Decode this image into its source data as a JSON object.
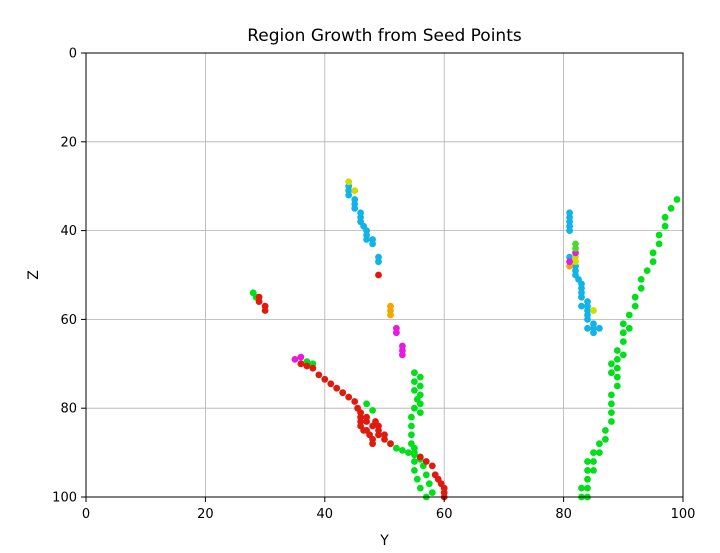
{
  "chart_data": {
    "type": "scatter",
    "title": "Region Growth from Seed Points",
    "xlabel": "Y",
    "ylabel": "Z",
    "xlim": [
      0,
      100
    ],
    "ylim": [
      100,
      0
    ],
    "y_axis_inverted": true,
    "grid": true,
    "x_ticks": [
      "0",
      "20",
      "40",
      "60",
      "80",
      "100"
    ],
    "y_ticks": [
      "0",
      "20",
      "40",
      "60",
      "80",
      "100"
    ],
    "series": [
      {
        "color": "#00e01a",
        "points": [
          [
            55,
            72
          ],
          [
            55,
            74
          ],
          [
            55,
            76
          ],
          [
            55.5,
            78
          ],
          [
            55,
            80
          ],
          [
            56,
            73
          ],
          [
            56,
            75
          ],
          [
            56,
            77
          ],
          [
            56,
            79
          ],
          [
            56,
            81
          ],
          [
            54.5,
            82
          ],
          [
            54.5,
            84
          ],
          [
            54.5,
            86
          ],
          [
            54.5,
            88
          ],
          [
            55,
            90
          ],
          [
            55,
            92
          ],
          [
            55,
            94
          ],
          [
            55.5,
            96
          ],
          [
            56,
            98
          ],
          [
            57,
            100
          ],
          [
            55,
            89
          ],
          [
            56,
            91
          ],
          [
            56.5,
            93
          ],
          [
            57,
            95
          ],
          [
            57.5,
            97
          ],
          [
            58,
            99
          ],
          [
            51,
            88
          ],
          [
            52,
            89
          ],
          [
            53,
            89.5
          ],
          [
            54,
            90
          ],
          [
            55,
            90.5
          ],
          [
            56,
            91.5
          ],
          [
            47,
            79
          ],
          [
            48,
            80.5
          ],
          [
            37,
            69.5
          ],
          [
            38,
            70
          ],
          [
            28,
            54
          ],
          [
            28.5,
            55
          ],
          [
            83,
            98
          ],
          [
            83,
            100
          ],
          [
            84,
            92
          ],
          [
            84,
            94
          ],
          [
            84,
            96
          ],
          [
            84,
            98
          ],
          [
            84,
            100
          ],
          [
            85,
            90
          ],
          [
            85,
            92
          ],
          [
            85,
            94
          ],
          [
            86,
            88
          ],
          [
            86,
            90
          ],
          [
            87,
            85
          ],
          [
            87,
            87
          ],
          [
            88,
            83
          ],
          [
            88,
            81
          ],
          [
            88,
            79
          ],
          [
            88,
            77
          ],
          [
            89,
            75
          ],
          [
            89,
            73
          ],
          [
            89,
            71
          ],
          [
            89,
            69
          ],
          [
            89,
            67
          ],
          [
            90,
            65
          ],
          [
            90,
            63
          ],
          [
            90,
            61
          ],
          [
            91,
            59
          ],
          [
            92,
            57
          ],
          [
            92,
            55
          ],
          [
            93,
            53
          ],
          [
            93,
            51
          ],
          [
            94,
            49
          ],
          [
            95,
            47
          ],
          [
            95,
            45
          ],
          [
            96,
            43
          ],
          [
            96,
            41
          ],
          [
            97,
            39
          ],
          [
            97,
            37
          ],
          [
            98,
            35
          ],
          [
            99,
            33
          ],
          [
            88,
            70
          ],
          [
            88,
            72
          ],
          [
            90,
            68
          ],
          [
            91,
            62
          ]
        ]
      },
      {
        "color": "#e01a0f",
        "points": [
          [
            36,
            70
          ],
          [
            37,
            70.5
          ],
          [
            38,
            71
          ],
          [
            39,
            72.5
          ],
          [
            40,
            73.5
          ],
          [
            41,
            74.5
          ],
          [
            42,
            75.5
          ],
          [
            43,
            76.5
          ],
          [
            44,
            77.5
          ],
          [
            45,
            78.5
          ],
          [
            45.5,
            80
          ],
          [
            46,
            81
          ],
          [
            46,
            82
          ],
          [
            46,
            83
          ],
          [
            46,
            84
          ],
          [
            46.5,
            85
          ],
          [
            47,
            85
          ],
          [
            47.5,
            86
          ],
          [
            48,
            87
          ],
          [
            48,
            88
          ],
          [
            48.5,
            83
          ],
          [
            49,
            84
          ],
          [
            49,
            85
          ],
          [
            50,
            86
          ],
          [
            50,
            87
          ],
          [
            51,
            88
          ],
          [
            47,
            82
          ],
          [
            47,
            83
          ],
          [
            48,
            84
          ],
          [
            49,
            86
          ],
          [
            56,
            91
          ],
          [
            57,
            92
          ],
          [
            58,
            93
          ],
          [
            58.5,
            95
          ],
          [
            59,
            96
          ],
          [
            59.5,
            97
          ],
          [
            60,
            98
          ],
          [
            60,
            99
          ],
          [
            60,
            100
          ],
          [
            29,
            55
          ],
          [
            29,
            56
          ],
          [
            30,
            57
          ],
          [
            30,
            58
          ],
          [
            49,
            50
          ]
        ]
      },
      {
        "color": "#12b4e8",
        "points": [
          [
            44,
            30
          ],
          [
            44,
            31
          ],
          [
            44,
            32
          ],
          [
            45,
            33
          ],
          [
            45,
            34
          ],
          [
            45,
            35
          ],
          [
            46,
            36
          ],
          [
            46,
            37
          ],
          [
            46,
            38
          ],
          [
            46.5,
            39
          ],
          [
            47,
            40
          ],
          [
            47,
            41
          ],
          [
            47,
            42
          ],
          [
            48,
            43
          ],
          [
            48,
            42
          ],
          [
            49,
            46
          ],
          [
            49,
            47
          ],
          [
            81,
            36
          ],
          [
            81,
            37
          ],
          [
            81,
            38
          ],
          [
            81,
            39
          ],
          [
            81,
            40
          ],
          [
            81,
            46
          ],
          [
            82,
            48
          ],
          [
            82,
            49
          ],
          [
            82,
            50
          ],
          [
            82.5,
            51
          ],
          [
            83,
            52
          ],
          [
            83,
            53
          ],
          [
            83,
            54
          ],
          [
            83,
            55
          ],
          [
            84,
            56
          ],
          [
            84,
            57
          ],
          [
            84,
            58
          ],
          [
            84,
            59
          ],
          [
            84,
            60
          ],
          [
            85,
            61
          ],
          [
            84,
            62
          ],
          [
            85,
            62
          ],
          [
            86,
            62
          ],
          [
            85,
            63
          ],
          [
            83,
            57
          ]
        ]
      },
      {
        "color": "#ccdd00",
        "points": [
          [
            44,
            29
          ],
          [
            45,
            31
          ],
          [
            82,
            47
          ],
          [
            82,
            46
          ],
          [
            85,
            58
          ]
        ]
      },
      {
        "color": "#f5a600",
        "points": [
          [
            51,
            57
          ],
          [
            51,
            58
          ],
          [
            51,
            59
          ],
          [
            81,
            48
          ]
        ]
      },
      {
        "color": "#e81ae0",
        "points": [
          [
            35,
            69
          ],
          [
            36,
            68.5
          ],
          [
            52,
            62
          ],
          [
            52,
            63
          ],
          [
            53,
            66
          ],
          [
            53,
            67
          ],
          [
            53,
            68
          ],
          [
            81,
            47
          ],
          [
            82,
            45
          ]
        ]
      },
      {
        "color": "#4adb2a",
        "points": [
          [
            82,
            43
          ],
          [
            82,
            44
          ]
        ]
      }
    ]
  }
}
